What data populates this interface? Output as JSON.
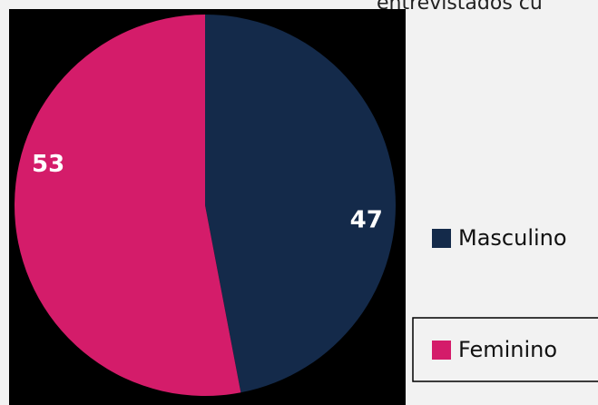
{
  "chart_data": {
    "type": "pie",
    "title": "entrevistados cu",
    "categories": [
      "Masculino",
      "Feminino"
    ],
    "values": [
      47,
      53
    ],
    "colors": [
      "#142a4a",
      "#d41c6a"
    ]
  }
}
